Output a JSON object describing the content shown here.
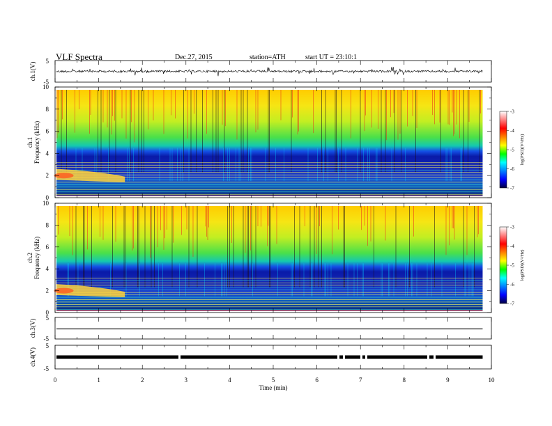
{
  "header": {
    "title": "VLF  Spectra",
    "date": "Dec.27, 2015",
    "station": "station=ATH",
    "start": "start  UT  =    23:10:1"
  },
  "chart_data": [
    {
      "type": "line",
      "name": "ch1-waveform",
      "ylabel": "ch.1(V)",
      "yticks": [
        "5",
        "-5"
      ],
      "ylim": [
        -5,
        5
      ],
      "baseline": 0,
      "xlim": [
        0,
        10
      ]
    },
    {
      "type": "heatmap",
      "name": "ch1-spectrogram",
      "ylabel_lines": [
        "ch.1",
        "Frequency  (kHz)"
      ],
      "yticks": [
        "10",
        "8",
        "6",
        "4",
        "2",
        "0"
      ],
      "ylim": [
        0,
        10
      ],
      "xlim": [
        0,
        10
      ],
      "colorbar": {
        "label": "log(PSD)(V²/Hz)",
        "ticks": [
          "-3",
          "-4",
          "-5",
          "-6",
          "-7"
        ],
        "range": [
          -7,
          -3
        ]
      },
      "colormap": [
        "#ff0000",
        "#ffff00",
        "#00ff00",
        "#00ffff",
        "#0000ff",
        "#000000"
      ]
    },
    {
      "type": "heatmap",
      "name": "ch2-spectrogram",
      "ylabel_lines": [
        "ch.2",
        "Frequency  (kHz)"
      ],
      "yticks": [
        "10",
        "8",
        "6",
        "4",
        "2",
        "0"
      ],
      "ylim": [
        0,
        10
      ],
      "xlim": [
        0,
        10
      ],
      "colorbar": {
        "label": "log(PSD)(V²/Hz)",
        "ticks": [
          "-3",
          "-4",
          "-5",
          "-6",
          "-7"
        ],
        "range": [
          -7,
          -3
        ]
      },
      "colormap": [
        "#ff0000",
        "#ffff00",
        "#00ff00",
        "#00ffff",
        "#0000ff",
        "#000000"
      ]
    },
    {
      "type": "line",
      "name": "ch3-waveform",
      "ylabel": "ch.3(V)",
      "yticks": [
        "5",
        "-5"
      ],
      "ylim": [
        -5,
        5
      ],
      "xlim": [
        0,
        10
      ]
    },
    {
      "type": "line",
      "name": "ch4-waveform",
      "ylabel": "ch.4(V)",
      "yticks": [
        "5",
        "-5"
      ],
      "ylim": [
        -5,
        5
      ],
      "xlim": [
        0,
        10
      ]
    }
  ],
  "xaxis": {
    "label": "Time  (min)",
    "ticks": [
      "0",
      "1",
      "2",
      "3",
      "4",
      "5",
      "6",
      "7",
      "8",
      "9",
      "10"
    ],
    "range": [
      0,
      10
    ],
    "data_end": 9.8
  }
}
